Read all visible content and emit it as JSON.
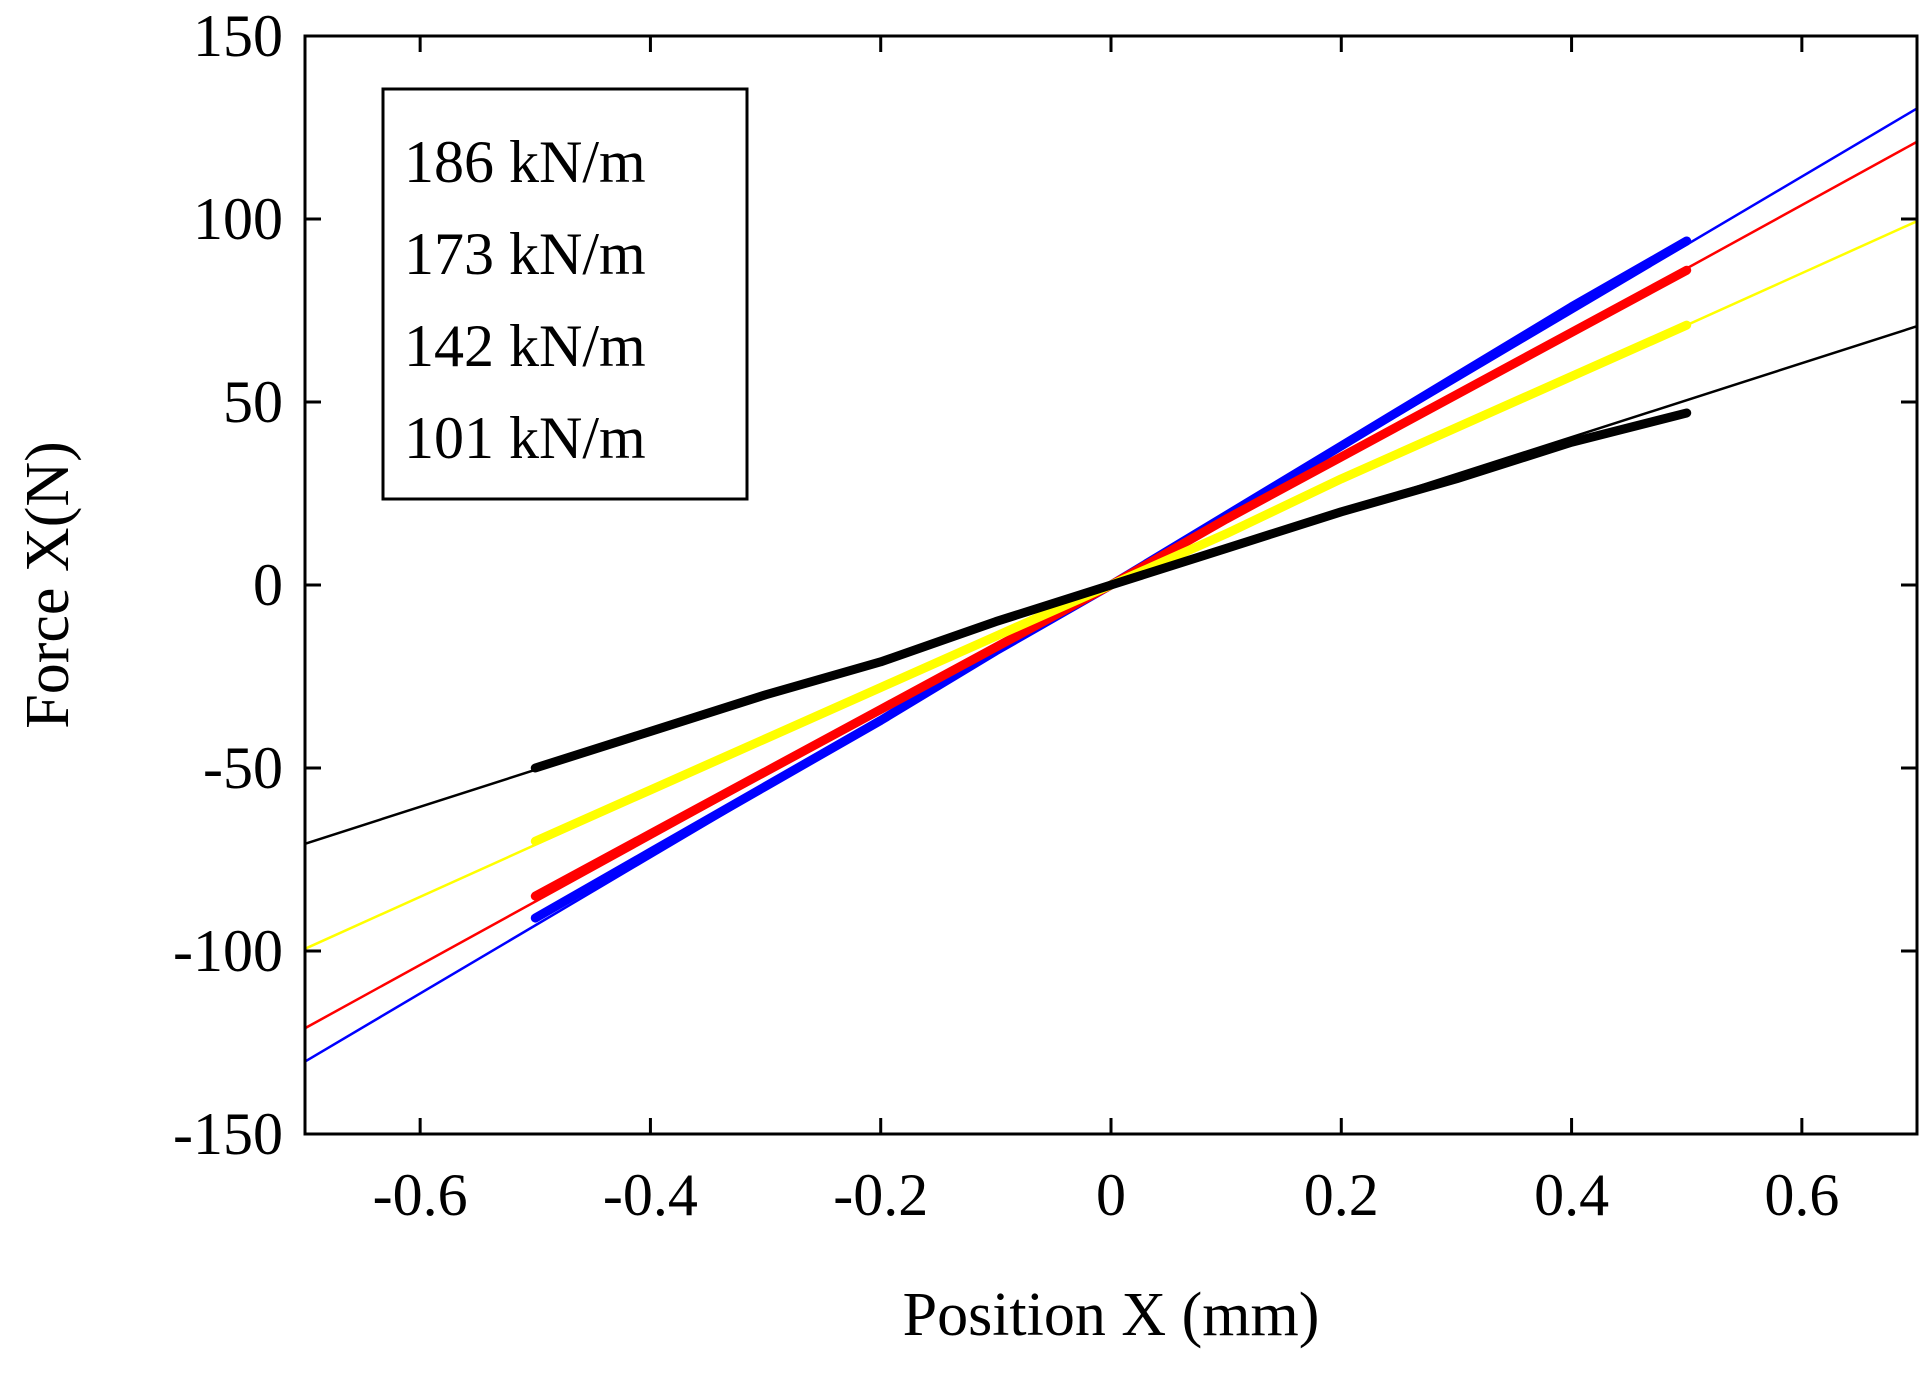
{
  "chart_data": {
    "type": "line",
    "title": "",
    "xlabel": "Position X (mm)",
    "ylabel": "Force X(N)",
    "xlim": [
      -0.7,
      0.7
    ],
    "ylim": [
      -150,
      150
    ],
    "xticks": [
      -0.6,
      -0.4,
      -0.2,
      0,
      0.2,
      0.4,
      0.6
    ],
    "xtick_labels": [
      "-0.6",
      "-0.4",
      "-0.2",
      "0",
      "0.2",
      "0.4",
      "0.6"
    ],
    "yticks": [
      150,
      100,
      50,
      0,
      -50,
      -100,
      -150
    ],
    "ytick_labels": [
      "150",
      "100",
      "50",
      "0",
      "-50",
      "-100",
      "-150"
    ],
    "grid": false,
    "legend_position": "top-left",
    "legend": [
      "186 kN/m",
      "173 kN/m",
      "142 kN/m",
      "101 kN/m"
    ],
    "series": [
      {
        "name": "186 kN/m",
        "color": "#0000ff",
        "fit_slope_N_per_mm": 186,
        "fit_x_range": [
          -0.7,
          0.7
        ],
        "measured_x": [
          -0.5,
          -0.4,
          -0.3,
          -0.2,
          -0.1,
          0,
          0.1,
          0.2,
          0.3,
          0.4,
          0.5
        ],
        "measured_y": [
          -91,
          -73,
          -55,
          -37,
          -18,
          0,
          19,
          38,
          57,
          76,
          94
        ]
      },
      {
        "name": "173 kN/m",
        "color": "#ff0000",
        "fit_slope_N_per_mm": 173,
        "fit_x_range": [
          -0.7,
          0.7
        ],
        "measured_x": [
          -0.5,
          -0.4,
          -0.3,
          -0.2,
          -0.1,
          0,
          0.1,
          0.2,
          0.3,
          0.4,
          0.5
        ],
        "measured_y": [
          -85,
          -68,
          -51,
          -34,
          -17,
          0,
          18,
          35,
          52,
          69,
          86
        ]
      },
      {
        "name": "142 kN/m",
        "color": "#ffff00",
        "fit_slope_N_per_mm": 142,
        "fit_x_range": [
          -0.7,
          0.7
        ],
        "measured_x": [
          -0.5,
          -0.4,
          -0.3,
          -0.2,
          -0.1,
          0,
          0.1,
          0.2,
          0.3,
          0.4,
          0.5
        ],
        "measured_y": [
          -70,
          -56,
          -42,
          -28,
          -14,
          0,
          14,
          29,
          43,
          57,
          71
        ]
      },
      {
        "name": "101 kN/m",
        "color": "#000000",
        "fit_slope_N_per_mm": 101,
        "fit_x_range": [
          -0.7,
          0.7
        ],
        "measured_x": [
          -0.5,
          -0.4,
          -0.3,
          -0.2,
          -0.1,
          0,
          0.1,
          0.2,
          0.3,
          0.4,
          0.5
        ],
        "measured_y": [
          -50,
          -40,
          -30,
          -21,
          -10,
          0,
          10,
          20,
          29,
          39,
          47
        ]
      }
    ]
  }
}
